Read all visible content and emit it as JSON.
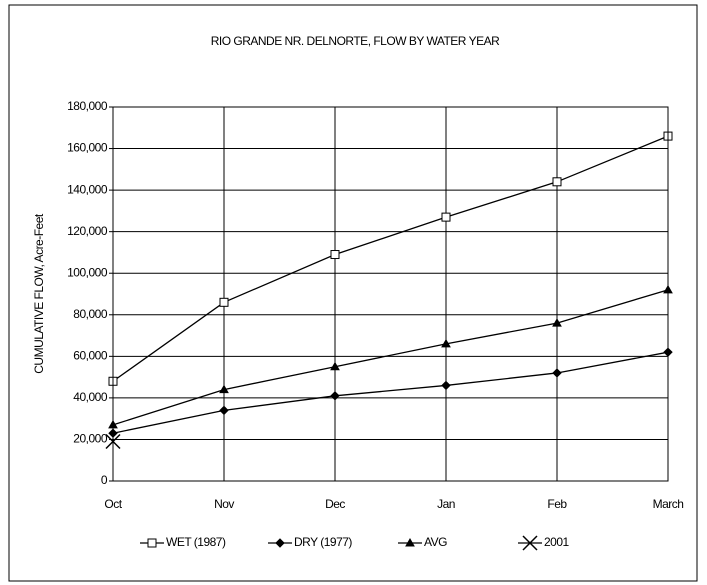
{
  "chart_data": {
    "type": "line",
    "title": "RIO GRANDE NR. DELNORTE, FLOW BY WATER YEAR",
    "y_label": "CUMULATIVE FLOW, Acre-Feet",
    "categories": [
      "Oct",
      "Nov",
      "Dec",
      "Jan",
      "Feb",
      "March"
    ],
    "series": [
      {
        "name": "WET (1987)",
        "color": "#000000",
        "marker": "square",
        "values": [
          48000,
          86000,
          109000,
          127000,
          144000,
          166000
        ]
      },
      {
        "name": "DRY (1977)",
        "color": "#000000",
        "marker": "diamond",
        "values": [
          23000,
          34000,
          41000,
          46000,
          52000,
          62000
        ]
      },
      {
        "name": "AVG",
        "color": "#000000",
        "marker": "triangle",
        "values": [
          27000,
          44000,
          55000,
          66000,
          76000,
          92000
        ]
      },
      {
        "name": "2001",
        "color": "#000000",
        "marker": "x",
        "values": [
          19000,
          null,
          null,
          null,
          null,
          null
        ]
      }
    ],
    "ylim": [
      0,
      180000
    ],
    "yticks": [
      0,
      {
        "value": 20000,
        "label": "20,000"
      },
      {
        "value": 40000,
        "label": "40,000"
      },
      {
        "value": 60000,
        "label": "60,000"
      },
      {
        "value": 80000,
        "label": "80,000"
      },
      {
        "value": 100000,
        "label": "100,000"
      },
      {
        "value": 120000,
        "label": "120,000"
      },
      {
        "value": 140000,
        "label": "140,000"
      },
      {
        "value": 160000,
        "label": "160,000"
      },
      {
        "value": 180000,
        "label": "180,000"
      }
    ],
    "grid": true,
    "legend": "bottom"
  }
}
